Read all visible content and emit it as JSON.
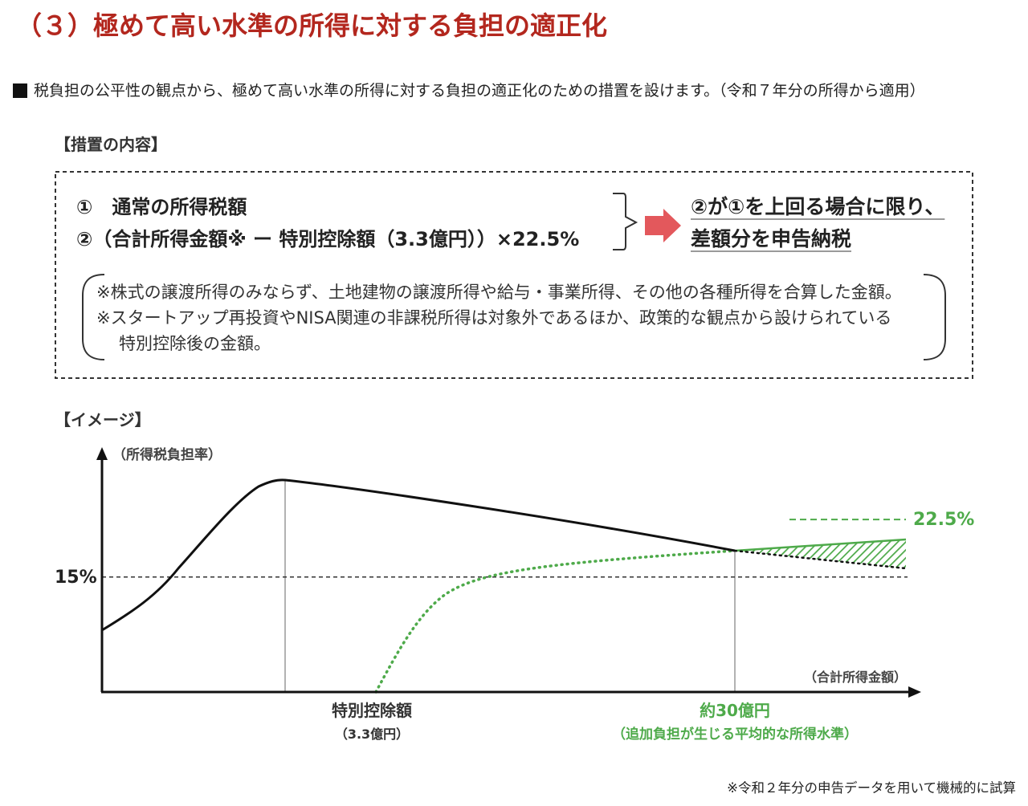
{
  "colors": {
    "title": "#b3271e",
    "text": "#222222",
    "green": "#4eaa4a",
    "arrow": "#e3585c"
  },
  "title": "（３）極めて高い水準の所得に対する負担の適正化",
  "intro": {
    "bullet_icon": "black-square-icon",
    "text": "税負担の公平性の観点から、極めて高い水準の所得に対する負担の適正化のための措置を設けます。（令和７年分の所得から適用）"
  },
  "measures": {
    "heading": "【措置の内容】",
    "formula_items": [
      "①　通常の所得税額",
      "②（合計所得金額※ ー 特別控除額（3.3億円））×22.5%"
    ],
    "arrow_icon": "right-arrow-icon",
    "result_lines": [
      "②が①を上回る場合に限り、",
      "差額分を申告納税"
    ],
    "notes": [
      "※株式の譲渡所得のみならず、土地建物の譲渡所得や給与・事業所得、その他の各種所得を合算した金額。",
      "※スタートアップ再投資やNISA関連の非課税所得は対象外であるほか、政策的な観点から設けられている",
      "特別控除後の金額。"
    ]
  },
  "figure": {
    "heading": "【イメージ】",
    "y_axis_label": "（所得税負担率）",
    "x_axis_label": "（合計所得金額）",
    "reference_lines": [
      {
        "label": "15%",
        "value": 15
      },
      {
        "label": "22.5%",
        "value": 22.5
      }
    ],
    "markers": [
      {
        "label": "特別控除額",
        "sublabel": "（3.3億円）"
      },
      {
        "label": "約30億円",
        "sublabel": "（追加負担が生じる平均的な所得水準）"
      }
    ]
  },
  "footnote": "※令和２年分の申告データを用いて機械的に試算"
}
